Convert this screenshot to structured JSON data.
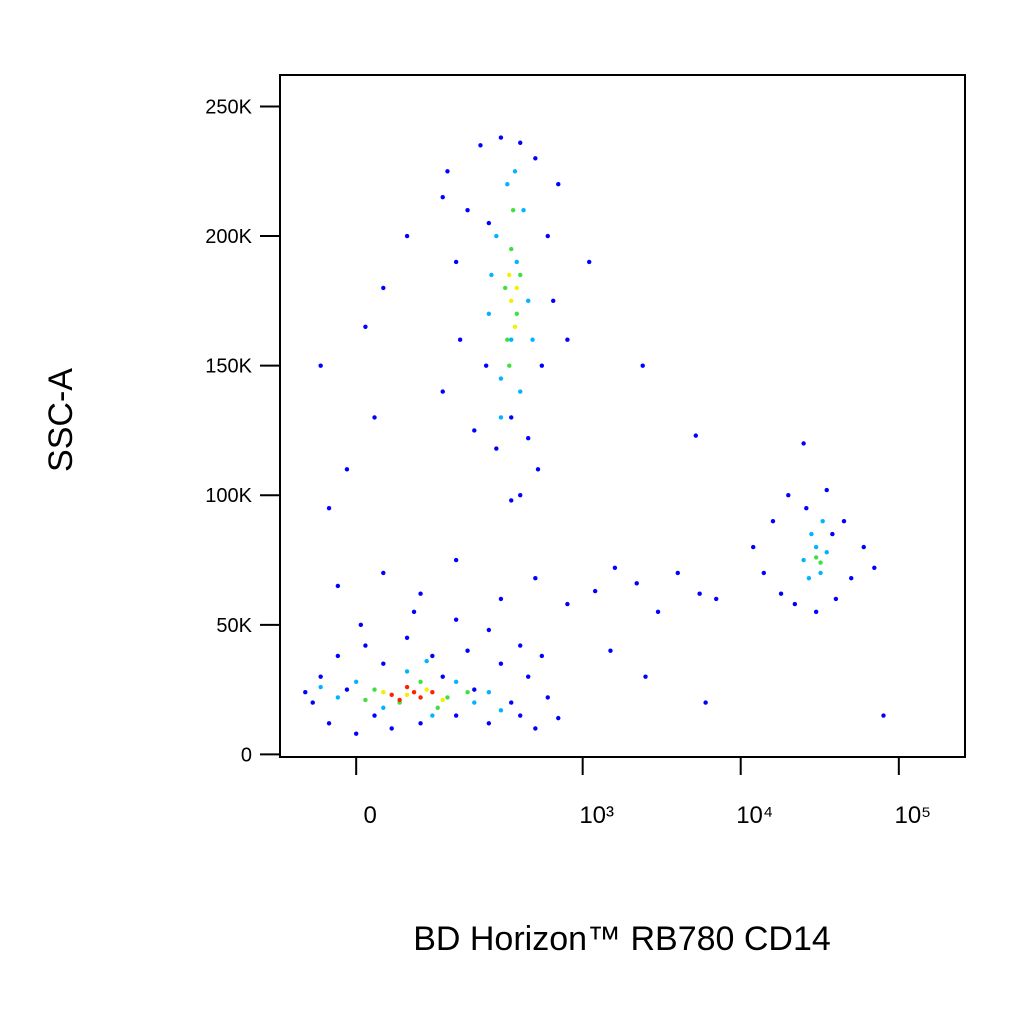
{
  "chart_data": {
    "type": "scatter",
    "x_label": "BD Horizon™ RB780 CD14",
    "y_label": "SSC-A",
    "xscale": "biexponential",
    "xlim": [
      -100,
      262144
    ],
    "ylim": [
      -1000,
      262144
    ],
    "xticks": [
      {
        "value": 0,
        "label": "0"
      },
      {
        "value": 1000,
        "label": "10³"
      },
      {
        "value": 10000,
        "label": "10⁴"
      },
      {
        "value": 100000,
        "label": "10⁵"
      }
    ],
    "yticks": [
      {
        "value": 0,
        "label": "0"
      },
      {
        "value": 50000,
        "label": "50K"
      },
      {
        "value": 100000,
        "label": "100K"
      },
      {
        "value": 150000,
        "label": "150K"
      },
      {
        "value": 200000,
        "label": "200K"
      },
      {
        "value": 250000,
        "label": "250K"
      }
    ],
    "series": [
      {
        "color": "#0000ff",
        "x": [
          -50,
          -40,
          -30,
          -20,
          -10,
          0,
          10,
          20,
          30,
          40,
          60,
          80,
          100,
          120,
          150,
          180,
          200,
          250,
          300,
          350,
          400,
          450,
          500,
          600,
          700,
          -60,
          5,
          70,
          150,
          250,
          400,
          550,
          -20,
          30,
          80,
          150,
          300,
          500,
          800,
          1200,
          1600,
          2200,
          3000,
          4000,
          5500,
          7000,
          1500,
          2500,
          6000,
          80000,
          -30,
          -10,
          20,
          -40,
          30,
          60,
          10,
          1100,
          2400,
          5200,
          120,
          120,
          150,
          130,
          160,
          200,
          220,
          250,
          280,
          300,
          350,
          400,
          450,
          500,
          550,
          600,
          650,
          700,
          800,
          180,
          240,
          520,
          400,
          350,
          12000,
          14000,
          16000,
          18000,
          20000,
          22000,
          26000,
          30000,
          35000,
          40000,
          45000,
          50000,
          60000,
          70000,
          25000,
          38000
        ],
        "values": [
          20000,
          30000,
          12000,
          38000,
          25000,
          8000,
          42000,
          15000,
          35000,
          10000,
          45000,
          12000,
          38000,
          30000,
          15000,
          40000,
          25000,
          12000,
          35000,
          20000,
          15000,
          30000,
          10000,
          22000,
          14000,
          24000,
          50000,
          55000,
          52000,
          48000,
          42000,
          38000,
          65000,
          70000,
          62000,
          75000,
          60000,
          68000,
          58000,
          63000,
          72000,
          66000,
          55000,
          70000,
          62000,
          60000,
          40000,
          30000,
          20000,
          15000,
          95000,
          110000,
          130000,
          150000,
          180000,
          200000,
          165000,
          190000,
          150000,
          123000,
          215000,
          140000,
          190000,
          225000,
          160000,
          125000,
          235000,
          205000,
          118000,
          238000,
          130000,
          236000,
          122000,
          230000,
          150000,
          200000,
          175000,
          220000,
          160000,
          210000,
          150000,
          110000,
          100000,
          98000,
          80000,
          70000,
          90000,
          62000,
          100000,
          58000,
          95000,
          55000,
          102000,
          60000,
          90000,
          68000,
          80000,
          72000,
          120000,
          85000
        ]
      },
      {
        "color": "#00b4ff",
        "x": [
          0,
          30,
          60,
          100,
          150,
          200,
          -20,
          250,
          300,
          90,
          -40,
          250,
          280,
          300,
          330,
          350,
          380,
          400,
          420,
          450,
          300,
          370,
          480,
          260,
          25000,
          28000,
          32000,
          30000,
          35000,
          27000,
          33000
        ],
        "values": [
          28000,
          18000,
          32000,
          15000,
          28000,
          20000,
          22000,
          24000,
          17000,
          36000,
          26000,
          170000,
          200000,
          145000,
          220000,
          160000,
          190000,
          140000,
          210000,
          175000,
          130000,
          225000,
          160000,
          185000,
          75000,
          85000,
          70000,
          80000,
          78000,
          68000,
          90000
        ]
      },
      {
        "color": "#40e040",
        "x": [
          20,
          50,
          80,
          130,
          180,
          10,
          110,
          320,
          350,
          380,
          330,
          360,
          400,
          340,
          30000,
          32000
        ],
        "values": [
          25000,
          20000,
          28000,
          22000,
          24000,
          21000,
          18000,
          180000,
          195000,
          170000,
          160000,
          210000,
          185000,
          150000,
          76000,
          74000
        ]
      },
      {
        "color": "#f0f000",
        "x": [
          30,
          60,
          90,
          120,
          350,
          370,
          340,
          380
        ],
        "values": [
          24000,
          23000,
          25000,
          21000,
          175000,
          165000,
          185000,
          180000
        ]
      },
      {
        "color": "#ff2000",
        "x": [
          40,
          70,
          50,
          80,
          100,
          60
        ],
        "values": [
          23000,
          24000,
          21000,
          22000,
          24000,
          26000
        ]
      }
    ]
  }
}
